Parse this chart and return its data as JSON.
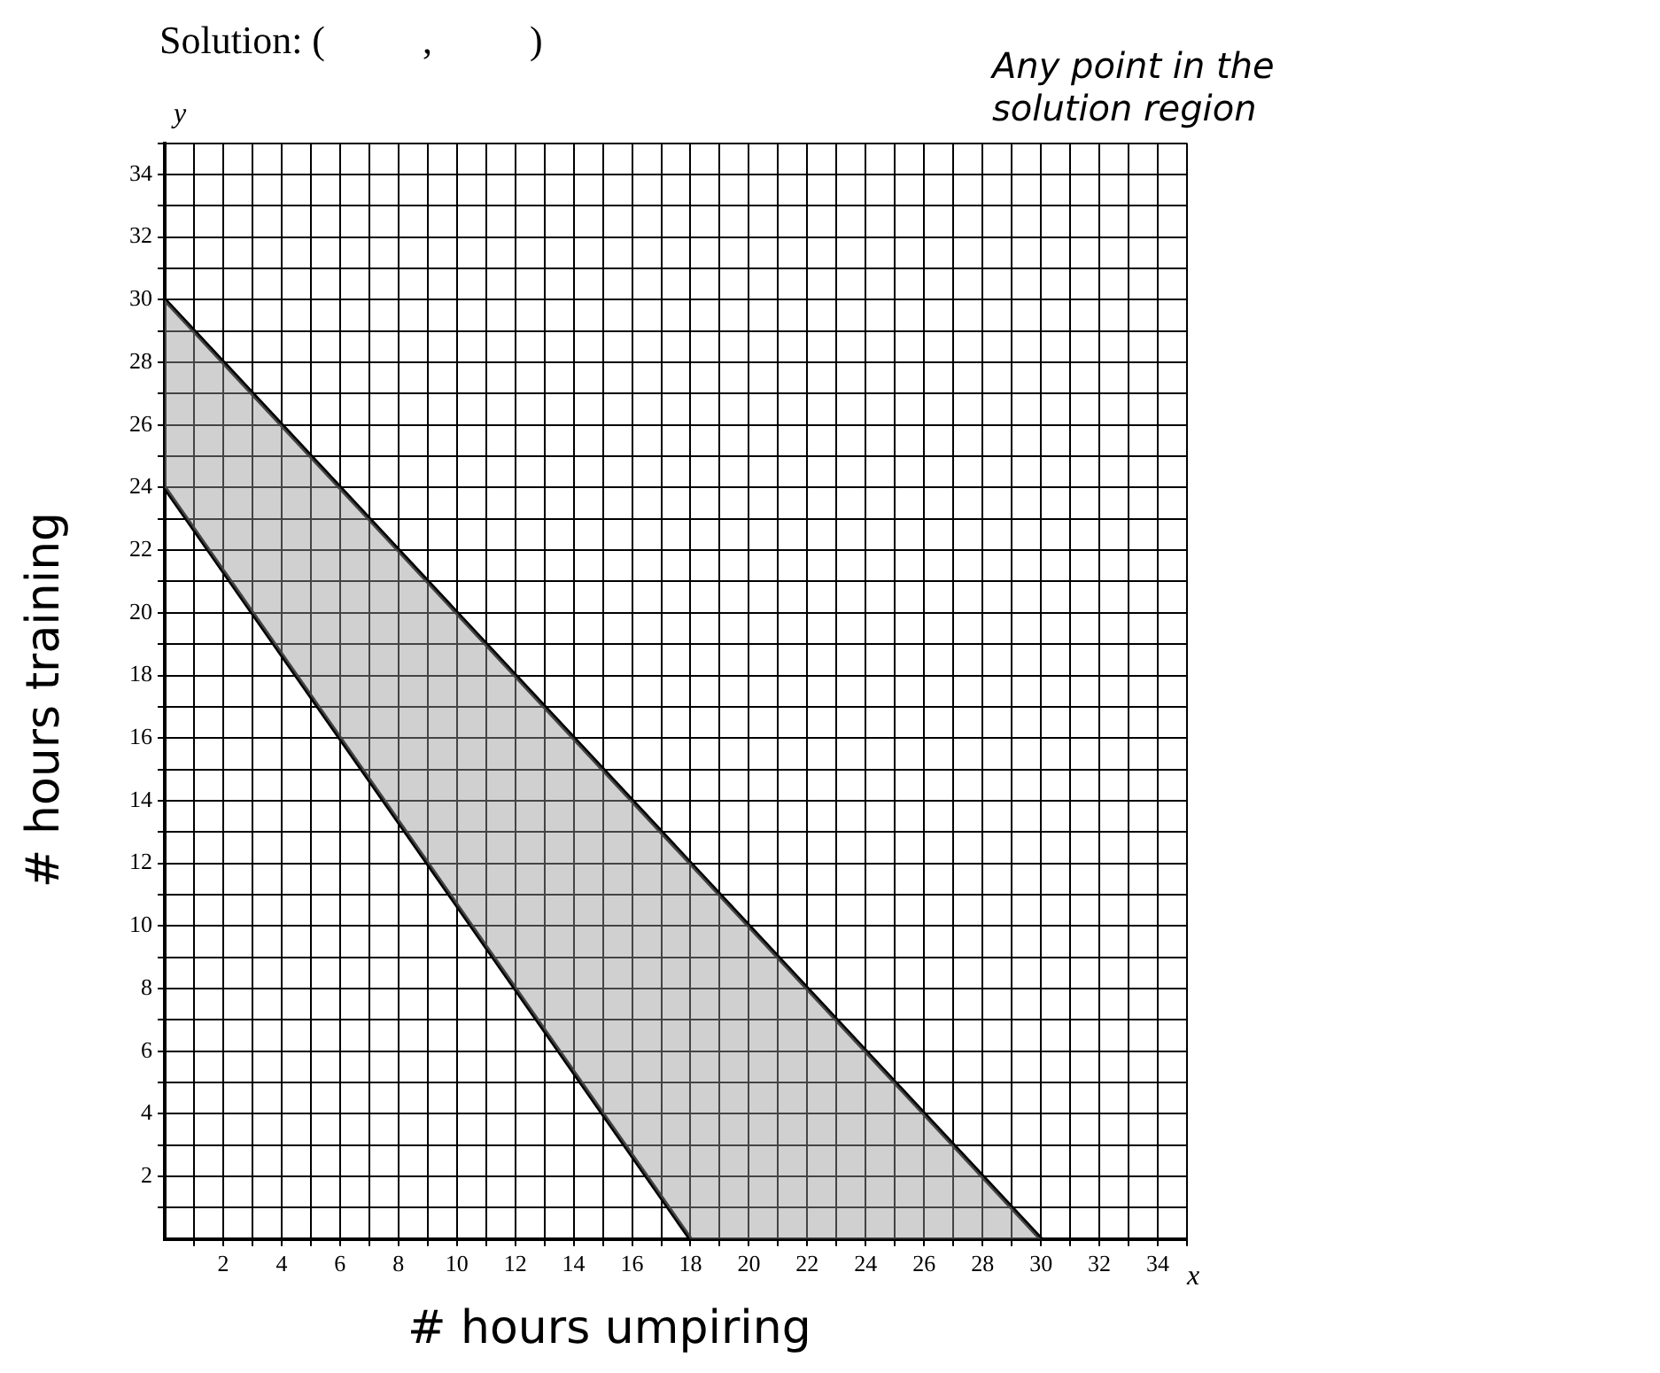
{
  "chart_data": {
    "type": "line",
    "title": "Solution: (          ,          )",
    "xlabel": "# hours umpiring",
    "ylabel": "# hours training",
    "annotations": [
      "Any point in the solution region",
      "x",
      "y"
    ],
    "series": [
      {
        "x": [
          0,
          18,
          30
        ],
        "values": [
          30,
          12,
          0
        ],
        "lower": [
          24,
          0,
          0
        ],
        "upper": [
          30,
          12,
          0
        ],
        "color": "#000000"
      },
      {
        "x": [
          0,
          18
        ],
        "values": [
          24,
          0
        ],
        "color": "#000000"
      }
    ],
    "xlim": [
      0,
      35
    ],
    "ylim": [
      0,
      35
    ],
    "xticks": [
      {
        "value": 1,
        "label": null
      },
      2,
      {
        "value": 3,
        "label": null
      },
      4,
      {
        "value": 5,
        "label": null
      },
      6,
      {
        "value": 7,
        "label": null
      },
      8,
      {
        "value": 9,
        "label": null
      },
      10,
      {
        "value": 11,
        "label": null
      },
      12,
      {
        "value": 13,
        "label": null
      },
      14,
      {
        "value": 15,
        "label": null
      },
      16,
      {
        "value": 17,
        "label": null
      },
      18,
      {
        "value": 19,
        "label": null
      },
      20,
      {
        "value": 21,
        "label": null
      },
      22,
      {
        "value": 23,
        "label": null
      },
      24,
      {
        "value": 25,
        "label": null
      },
      26,
      {
        "value": 27,
        "label": null
      },
      28,
      {
        "value": 29,
        "label": null
      },
      30,
      {
        "value": 31,
        "label": null
      },
      32,
      {
        "value": 33,
        "label": null
      },
      34,
      {
        "value": 35,
        "label": null
      }
    ],
    "yticks": [
      {
        "value": 1,
        "label": null
      },
      2,
      {
        "value": 3,
        "label": null
      },
      4,
      {
        "value": 5,
        "label": null
      },
      6,
      {
        "value": 7,
        "label": null
      },
      8,
      {
        "value": 9,
        "label": null
      },
      10,
      {
        "value": 11,
        "label": null
      },
      12,
      {
        "value": 13,
        "label": null
      },
      14,
      {
        "value": 15,
        "label": null
      },
      16,
      {
        "value": 17,
        "label": null
      },
      18,
      {
        "value": 19,
        "label": null
      },
      20,
      {
        "value": 21,
        "label": null
      },
      22,
      {
        "value": 23,
        "label": null
      },
      24,
      {
        "value": 25,
        "label": null
      },
      26,
      {
        "value": 27,
        "label": null
      },
      28,
      {
        "value": 29,
        "label": null
      },
      30,
      {
        "value": 31,
        "label": null
      },
      32,
      {
        "value": 33,
        "label": null
      },
      34,
      {
        "value": 35,
        "label": null
      }
    ],
    "grid": true,
    "legend": false,
    "marker": "none",
    "line_style": "solid"
  }
}
